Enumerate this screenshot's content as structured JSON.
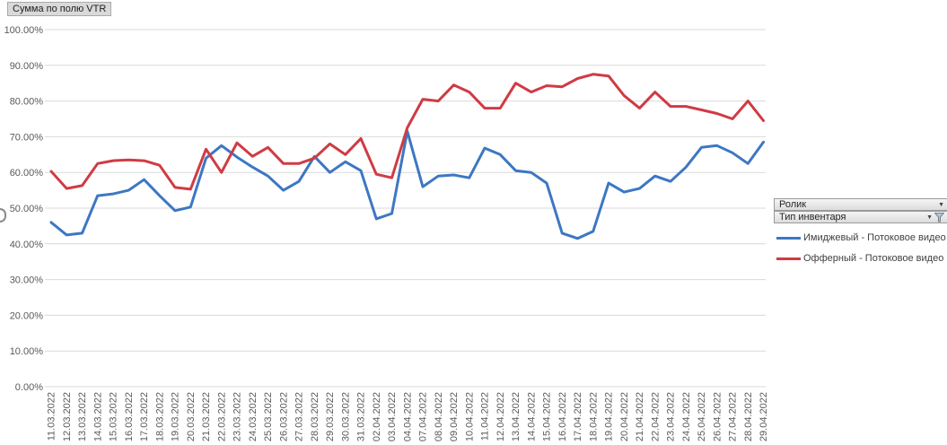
{
  "value_button": {
    "label": "Сумма по полю VTR"
  },
  "field_buttons": [
    {
      "label": "Ролик",
      "has_filter": false
    },
    {
      "label": "Тип инвентаря",
      "has_filter": true
    }
  ],
  "legend": [
    {
      "label": "Имиджевый - Потоковое видео",
      "color": "#3c77c3"
    },
    {
      "label": "Офферный - Потоковое видео",
      "color": "#d03b44"
    }
  ],
  "colors": {
    "grid": "#d9d9d9",
    "tick_label": "#595959",
    "series_blue": "#3c77c3",
    "series_red": "#d03b44"
  },
  "chart_data": {
    "type": "line",
    "title": "Сумма по полю VTR",
    "xlabel": "",
    "ylabel": "",
    "ylim": [
      0,
      100
    ],
    "grid": "horizontal",
    "legend_position": "right",
    "y_ticks": [
      "100.00%",
      "90.00%",
      "80.00%",
      "70.00%",
      "60.00%",
      "50.00%",
      "40.00%",
      "30.00%",
      "20.00%",
      "10.00%",
      "0.00%"
    ],
    "categories": [
      "11.03.2022",
      "12.03.2022",
      "13.03.2022",
      "14.03.2022",
      "15.03.2022",
      "16.03.2022",
      "17.03.2022",
      "18.03.2022",
      "19.03.2022",
      "20.03.2022",
      "21.03.2022",
      "22.03.2022",
      "23.03.2022",
      "24.03.2022",
      "25.03.2022",
      "26.03.2022",
      "27.03.2022",
      "28.03.2022",
      "29.03.2022",
      "30.03.2022",
      "31.03.2022",
      "02.04.2022",
      "03.04.2022",
      "04.04.2022",
      "07.04.2022",
      "08.04.2022",
      "09.04.2022",
      "10.04.2022",
      "11.04.2022",
      "12.04.2022",
      "13.04.2022",
      "14.04.2022",
      "15.04.2022",
      "16.04.2022",
      "17.04.2022",
      "18.04.2022",
      "19.04.2022",
      "20.04.2022",
      "21.04.2022",
      "22.04.2022",
      "23.04.2022",
      "24.04.2022",
      "25.04.2022",
      "26.04.2022",
      "27.04.2022",
      "28.04.2022",
      "29.04.2022"
    ],
    "series": [
      {
        "name": "Имиджевый - Потоковое видео",
        "color": "#3c77c3",
        "values": [
          46,
          42.5,
          43,
          53.5,
          54,
          55,
          58,
          53.5,
          49.3,
          50.3,
          64,
          67.5,
          64.3,
          61.5,
          59,
          55,
          57.5,
          64.5,
          60,
          63,
          60.5,
          47,
          48.5,
          71.5,
          56,
          59,
          59.3,
          58.5,
          66.8,
          65,
          60.5,
          60,
          57,
          43,
          41.5,
          43.5,
          57,
          54.5,
          55.5,
          59,
          57.5,
          61.5,
          67,
          67.5,
          65.5,
          62.5,
          68.5
        ]
      },
      {
        "name": "Офферный - Потоковое видео",
        "color": "#d03b44",
        "values": [
          60.3,
          55.5,
          56.3,
          62.5,
          63.3,
          63.5,
          63.3,
          62,
          55.8,
          55.3,
          66.5,
          60,
          68.3,
          64.5,
          67,
          62.5,
          62.5,
          64,
          68,
          65,
          69.5,
          59.5,
          58.5,
          72.5,
          80.5,
          80,
          84.5,
          82.5,
          78,
          78,
          85,
          82.5,
          84.3,
          84,
          86.3,
          87.5,
          87,
          81.5,
          78,
          82.5,
          78.5,
          78.5,
          77.5,
          76.5,
          75,
          80,
          74.5
        ]
      }
    ]
  }
}
